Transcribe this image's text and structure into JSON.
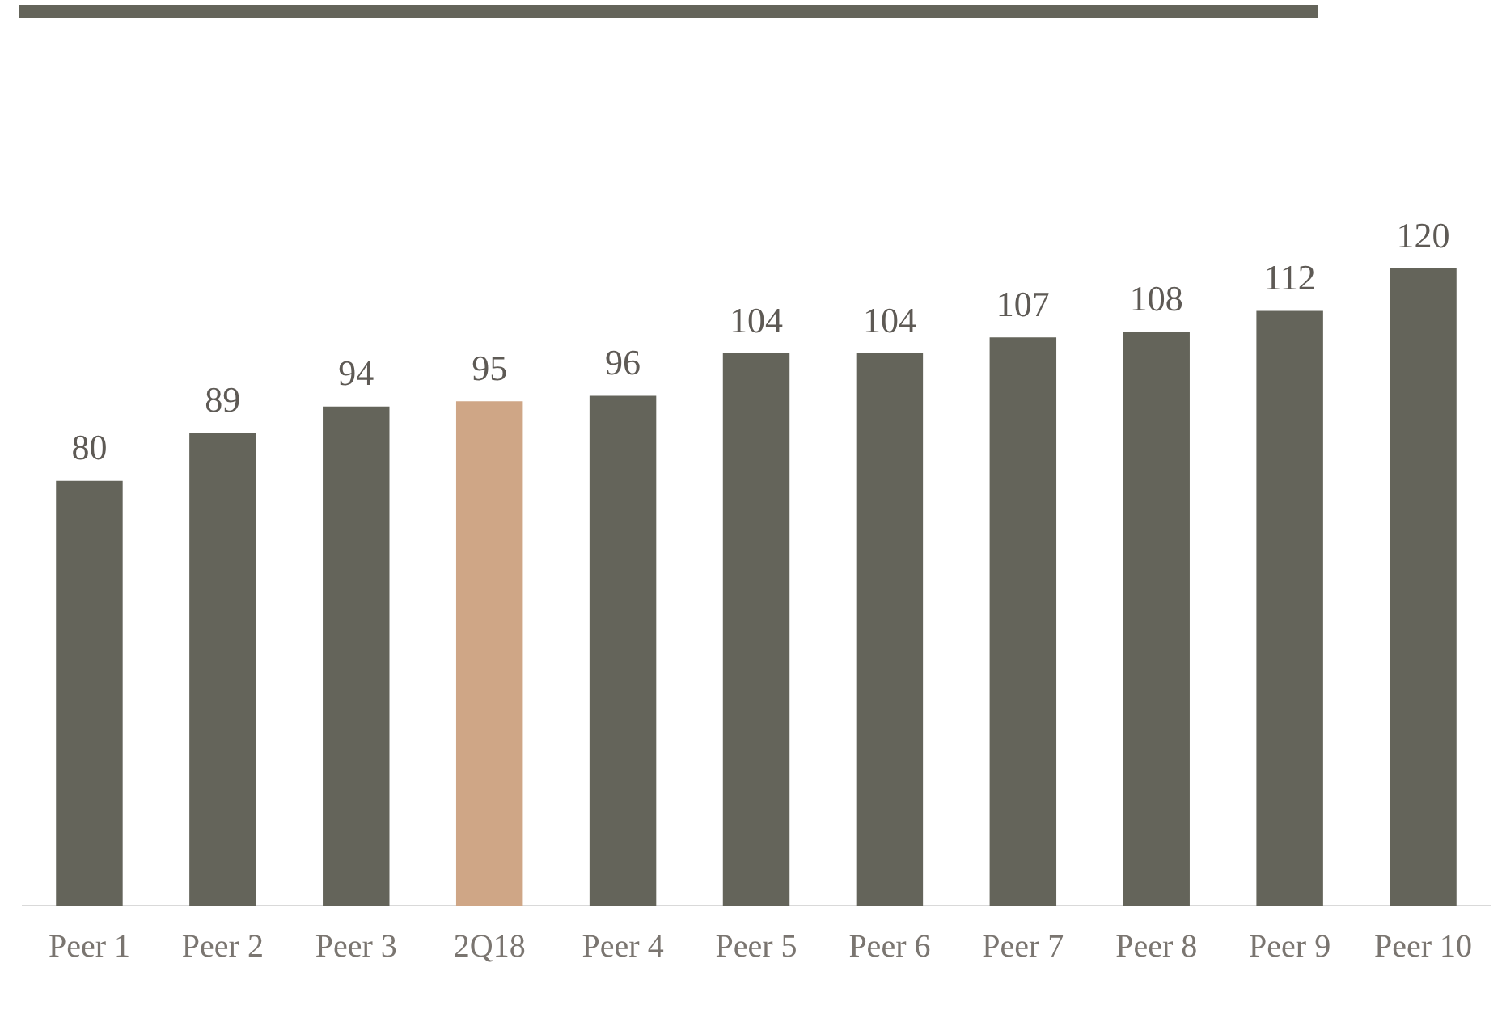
{
  "chart_data": {
    "type": "bar",
    "categories": [
      "Peer 1",
      "Peer 2",
      "Peer 3",
      "2Q18",
      "Peer 4",
      "Peer 5",
      "Peer 6",
      "Peer 7",
      "Peer 8",
      "Peer 9",
      "Peer 10"
    ],
    "values": [
      80,
      89,
      94,
      95,
      96,
      104,
      104,
      107,
      108,
      112,
      120
    ],
    "colors": [
      "#64645a",
      "#64645a",
      "#64645a",
      "#cfa686",
      "#64645a",
      "#64645a",
      "#64645a",
      "#64645a",
      "#64645a",
      "#64645a",
      "#64645a"
    ],
    "data_labels": true,
    "grid": false,
    "legend": false
  }
}
